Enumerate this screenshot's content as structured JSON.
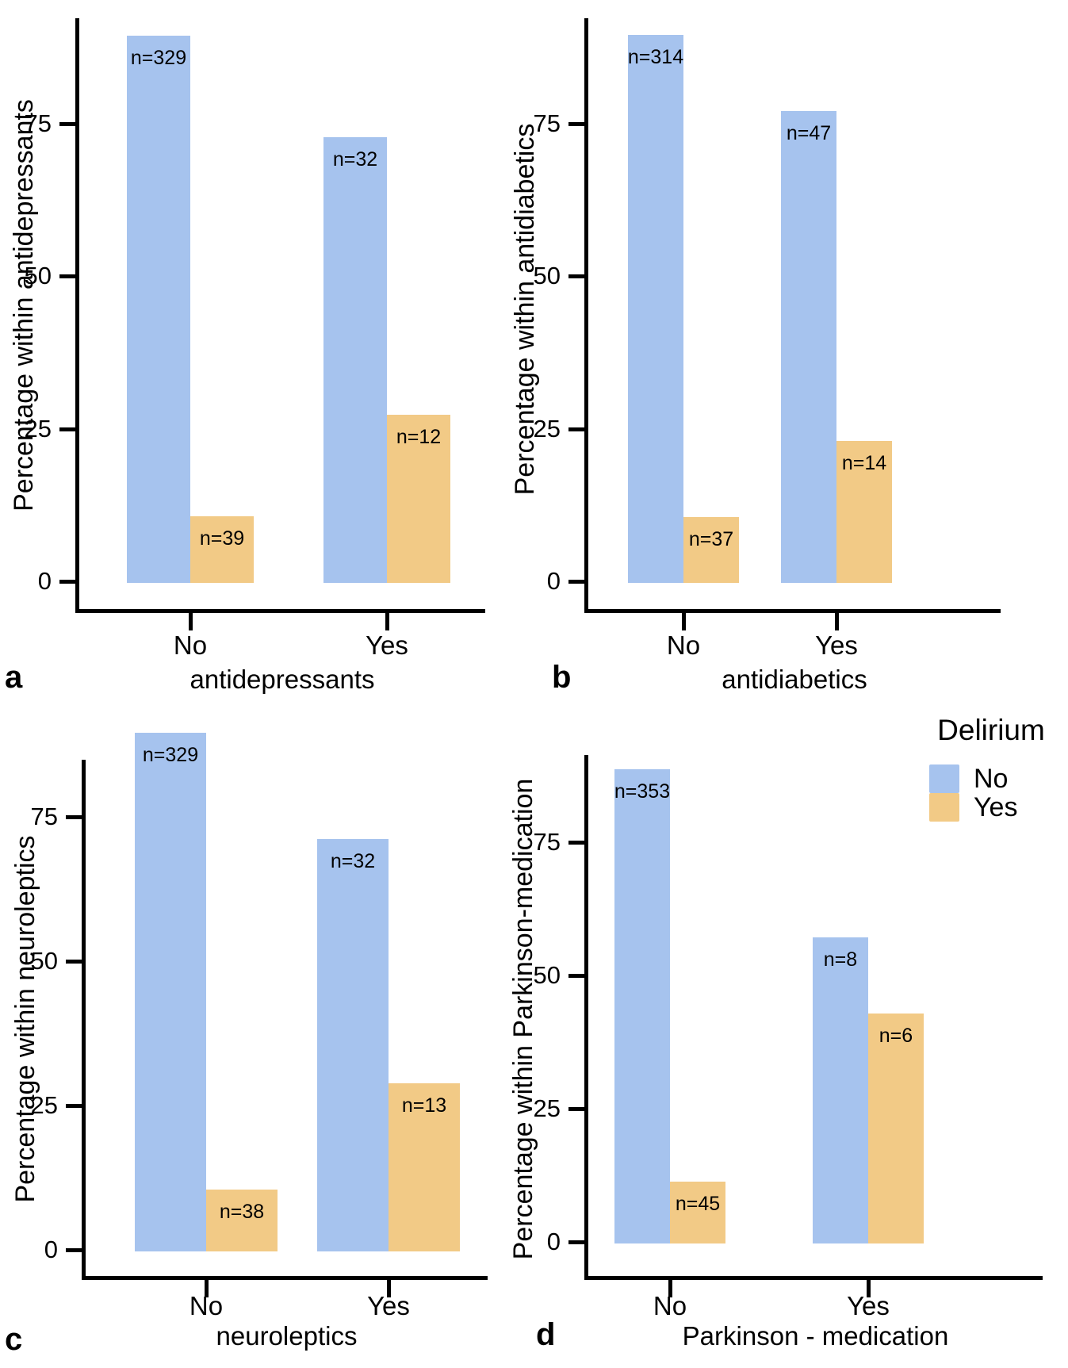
{
  "figure": {
    "description": "Four grouped bar charts (a-d) of delirium percentage within medication groups",
    "background": "#ffffff"
  },
  "colors": {
    "delirium_no": "#a6c3ee",
    "delirium_yes": "#f2ca86",
    "axis": "#000000",
    "text": "#000000"
  },
  "legend": {
    "title": "Delirium",
    "items": [
      {
        "label": "No",
        "color": "#a6c3ee"
      },
      {
        "label": "Yes",
        "color": "#f2ca86"
      }
    ]
  },
  "chart_data": [
    {
      "id": "a",
      "type": "bar",
      "panel_letter": "a",
      "xlabel": "antidepressants",
      "ylabel": "Percentage within antidepressants",
      "categories": [
        "No",
        "Yes"
      ],
      "series": [
        {
          "name": "No",
          "values": [
            89.4,
            72.7
          ],
          "counts": [
            "n=329",
            "n=32"
          ]
        },
        {
          "name": "Yes",
          "values": [
            10.6,
            27.3
          ],
          "counts": [
            "n=39",
            "n=12"
          ]
        }
      ],
      "yticks": [
        0,
        25,
        50,
        75
      ],
      "ylim": [
        0,
        93
      ],
      "grid": false,
      "legend_series_title": "Delirium"
    },
    {
      "id": "b",
      "type": "bar",
      "panel_letter": "b",
      "xlabel": "antidiabetics",
      "ylabel": "Percentage within antidiabetics",
      "categories": [
        "No",
        "Yes"
      ],
      "series": [
        {
          "name": "No",
          "values": [
            89.5,
            77.0
          ],
          "counts": [
            "n=314",
            "n=47"
          ]
        },
        {
          "name": "Yes",
          "values": [
            10.5,
            23.0
          ],
          "counts": [
            "n=37",
            "n=14"
          ]
        }
      ],
      "yticks": [
        0,
        25,
        50,
        75
      ],
      "ylim": [
        0,
        93
      ],
      "grid": false,
      "legend_series_title": "Delirium"
    },
    {
      "id": "c",
      "type": "bar",
      "panel_letter": "c",
      "xlabel": "neuroleptics",
      "ylabel": "Percentage within neuroleptics",
      "categories": [
        "No",
        "Yes"
      ],
      "series": [
        {
          "name": "No",
          "values": [
            89.6,
            71.1
          ],
          "counts": [
            "n=329",
            "n=32"
          ]
        },
        {
          "name": "Yes",
          "values": [
            10.4,
            28.9
          ],
          "counts": [
            "n=38",
            "n=13"
          ]
        }
      ],
      "yticks": [
        0,
        25,
        50,
        75
      ],
      "ylim": [
        0,
        93
      ],
      "grid": false,
      "legend_series_title": "Delirium"
    },
    {
      "id": "d",
      "type": "bar",
      "panel_letter": "d",
      "xlabel": "Parkinson - medication",
      "ylabel": "Percentage within Parkinson-medication",
      "categories": [
        "No",
        "Yes"
      ],
      "series": [
        {
          "name": "No",
          "values": [
            88.7,
            57.1
          ],
          "counts": [
            "n=353",
            "n=8"
          ]
        },
        {
          "name": "Yes",
          "values": [
            11.3,
            42.9
          ],
          "counts": [
            "n=45",
            "n=6"
          ]
        }
      ],
      "yticks": [
        0,
        25,
        50,
        75
      ],
      "ylim": [
        0,
        93
      ],
      "grid": false,
      "legend_series_title": "Delirium"
    }
  ]
}
